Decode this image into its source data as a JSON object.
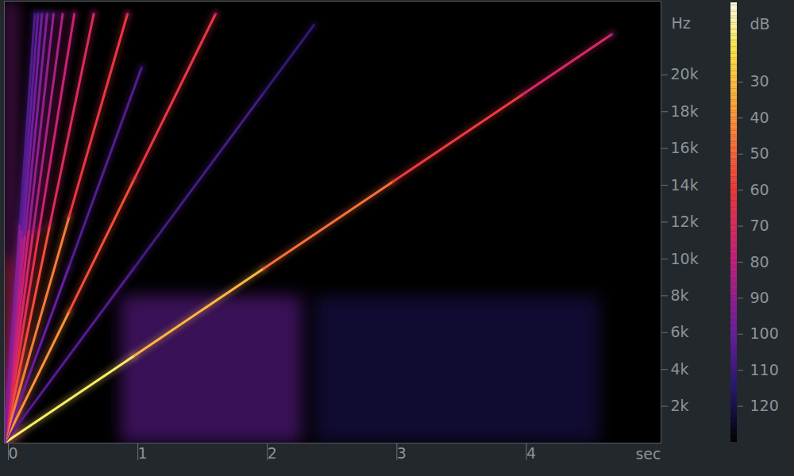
{
  "chart_data": {
    "type": "spectrogram",
    "x_label": "sec",
    "y_label": "Hz",
    "xlim": [
      0,
      5.07
    ],
    "xticks": [
      0,
      1,
      2,
      3,
      4
    ],
    "ylim": [
      0,
      24000
    ],
    "yticks": [
      {
        "value": 2000,
        "label": "2k"
      },
      {
        "value": 4000,
        "label": "4k"
      },
      {
        "value": 6000,
        "label": "6k"
      },
      {
        "value": 8000,
        "label": "8k"
      },
      {
        "value": 10000,
        "label": "10k"
      },
      {
        "value": 12000,
        "label": "12k"
      },
      {
        "value": 14000,
        "label": "14k"
      },
      {
        "value": 16000,
        "label": "16k"
      },
      {
        "value": 18000,
        "label": "18k"
      },
      {
        "value": 20000,
        "label": "20k"
      }
    ],
    "colorbar": {
      "label": "dB",
      "range": [
        8,
        130
      ],
      "ticks": [
        30,
        40,
        50,
        60,
        70,
        80,
        90,
        100,
        110,
        120
      ]
    },
    "regions": [
      {
        "x": [
          0,
          0.1
        ],
        "y": [
          0,
          24000
        ],
        "db": 92
      },
      {
        "x": [
          0,
          0.08
        ],
        "y": [
          0,
          10000
        ],
        "db": 60
      },
      {
        "x": [
          0.9,
          2.3
        ],
        "y": [
          0,
          8000
        ],
        "db": 100
      },
      {
        "x": [
          2.4,
          4.6
        ],
        "y": [
          0,
          8000
        ],
        "db": 118
      }
    ],
    "lines": [
      {
        "x": [
          0,
          1,
          2,
          3,
          4,
          4.69
        ],
        "y": [
          0,
          4730,
          9470,
          14200,
          18930,
          22200
        ],
        "db": [
          18,
          32,
          48,
          60,
          72,
          95
        ]
      },
      {
        "x": [
          0,
          1,
          2,
          2.39
        ],
        "y": [
          0,
          9500,
          19000,
          22700
        ],
        "db": [
          105,
          108,
          112,
          116
        ]
      },
      {
        "x": [
          0,
          0.5,
          1,
          1.63
        ],
        "y": [
          0,
          7150,
          14300,
          23300
        ],
        "db": [
          40,
          55,
          62,
          85
        ]
      },
      {
        "x": [
          0,
          0.5,
          1.06
        ],
        "y": [
          0,
          9600,
          20400
        ],
        "db": [
          100,
          105,
          112
        ]
      },
      {
        "x": [
          0,
          0.5,
          0.95
        ],
        "y": [
          0,
          12300,
          23300
        ],
        "db": [
          45,
          62,
          80
        ]
      },
      {
        "x": [
          0,
          0.35,
          0.69
        ],
        "y": [
          0,
          11800,
          23300
        ],
        "db": [
          55,
          70,
          85
        ]
      },
      {
        "x": [
          0,
          0.27,
          0.54
        ],
        "y": [
          0,
          11600,
          23300
        ],
        "db": [
          65,
          78,
          88
        ]
      },
      {
        "x": [
          0,
          0.22,
          0.45
        ],
        "y": [
          0,
          11400,
          23300
        ],
        "db": [
          72,
          85,
          92
        ]
      },
      {
        "x": [
          0,
          0.19,
          0.38
        ],
        "y": [
          0,
          11600,
          23300
        ],
        "db": [
          78,
          90,
          96
        ]
      },
      {
        "x": [
          0,
          0.16,
          0.33
        ],
        "y": [
          0,
          11300,
          23300
        ],
        "db": [
          82,
          94,
          100
        ]
      },
      {
        "x": [
          0,
          0.14,
          0.29
        ],
        "y": [
          0,
          11200,
          23300
        ],
        "db": [
          86,
          98,
          104
        ]
      },
      {
        "x": [
          0,
          0.13,
          0.26
        ],
        "y": [
          0,
          11600,
          23300
        ],
        "db": [
          90,
          102,
          108
        ]
      },
      {
        "x": [
          0,
          0.12,
          0.235
        ],
        "y": [
          0,
          11900,
          23300
        ],
        "db": [
          94,
          106,
          112
        ]
      }
    ]
  }
}
